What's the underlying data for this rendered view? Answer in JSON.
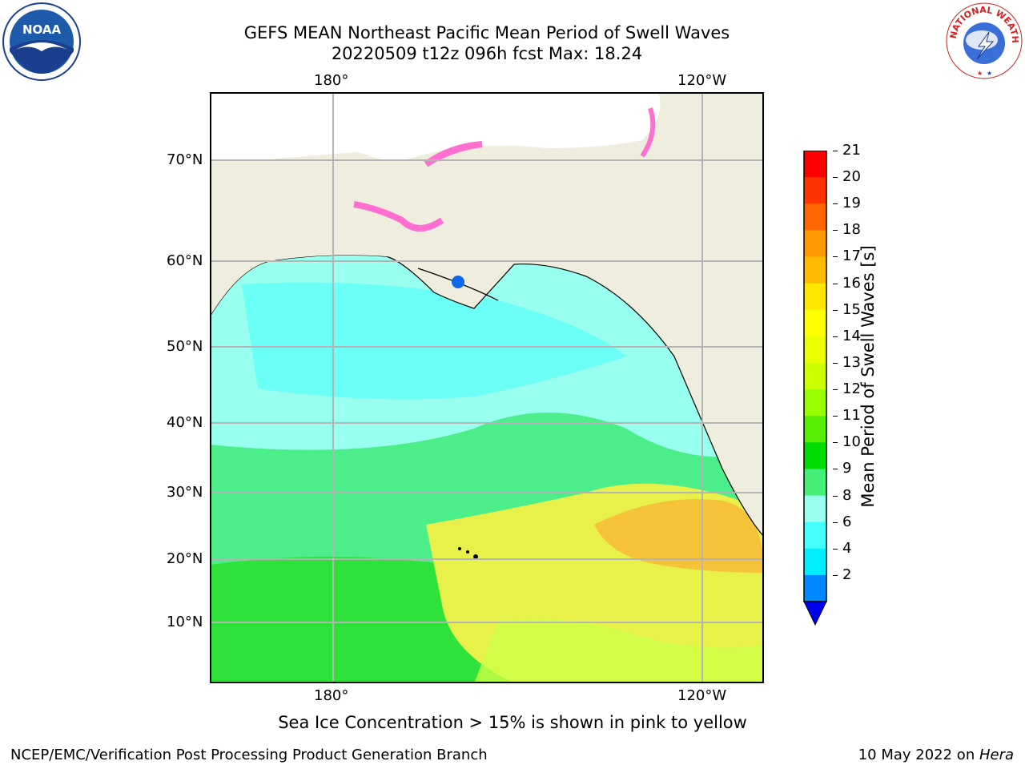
{
  "header": {
    "title_line1": "GEFS MEAN Northeast Pacific Mean Period of Swell Waves",
    "title_line2": "20220509 t12z 096h fcst   Max: 18.24"
  },
  "logos": {
    "left": "NOAA",
    "right": "NATIONAL WEATHER SERVICE"
  },
  "map": {
    "lon_ticks_top": [
      "180°",
      "120°W"
    ],
    "lon_ticks_bottom": [
      "180°",
      "120°W"
    ],
    "lat_ticks": [
      "70°N",
      "60°N",
      "50°N",
      "40°N",
      "30°N",
      "20°N",
      "10°N"
    ],
    "colors": {
      "land": "#efedde",
      "grid": "#b4b4b4",
      "ice": "#ff6fd0"
    }
  },
  "colorbar": {
    "label": "Mean Period of Swell Waves [s]",
    "ticks": [
      "21",
      "20",
      "19",
      "18",
      "17",
      "16",
      "15",
      "14",
      "13",
      "12",
      "11",
      "10",
      "9",
      "8",
      "6",
      "4",
      "2"
    ],
    "colors": [
      "#ff0000",
      "#ff3300",
      "#ff6600",
      "#ff9900",
      "#ffbb00",
      "#ffe600",
      "#ffff00",
      "#eaff00",
      "#ccff00",
      "#99ff00",
      "#55ee00",
      "#00dd00",
      "#44ee77",
      "#99ffee",
      "#44ffff",
      "#00eeff",
      "#0088ff"
    ],
    "extend_color": "#0000ee"
  },
  "note": "Sea Ice Concentration > 15% is shown in pink to yellow",
  "footer": {
    "left": "NCEP/EMC/Verification Post Processing Product Generation Branch",
    "date": "10 May 2022 on ",
    "machine": "Hera"
  }
}
